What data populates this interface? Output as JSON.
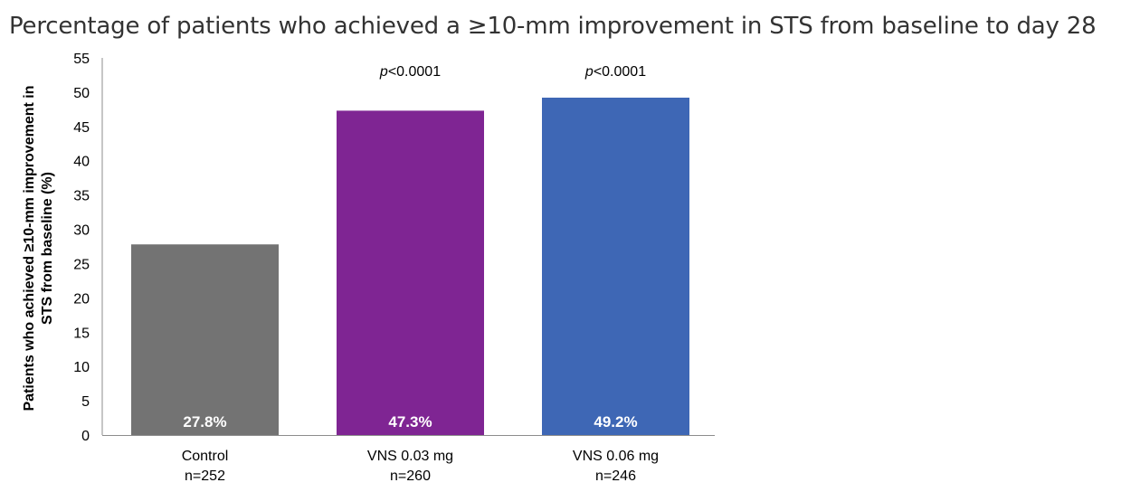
{
  "chart_data": {
    "type": "bar",
    "title": "Percentage of patients who achieved a ≥10-mm improvement in STS from baseline to day 28",
    "ylabel_lines": [
      "Patients who achieved ≥10-mm improvement in",
      "STS from baseline (%)"
    ],
    "xlabel": "",
    "ylim": [
      0,
      55
    ],
    "yticks": [
      0,
      5,
      10,
      15,
      20,
      25,
      30,
      35,
      40,
      45,
      50,
      55
    ],
    "grid": false,
    "categories": [
      {
        "name": "Control",
        "n": "n=252"
      },
      {
        "name": "VNS 0.03 mg",
        "n": "n=260"
      },
      {
        "name": "VNS 0.06 mg",
        "n": "n=246"
      }
    ],
    "values": [
      27.8,
      47.3,
      49.2
    ],
    "value_labels": [
      "27.8%",
      "47.3%",
      "49.2%"
    ],
    "colors": [
      "#737373",
      "#7f2593",
      "#3e67b5"
    ],
    "annotations": [
      {
        "category_index": 1,
        "prefix": "p",
        "text": "<0.0001"
      },
      {
        "category_index": 2,
        "prefix": "p",
        "text": "<0.0001"
      }
    ]
  }
}
